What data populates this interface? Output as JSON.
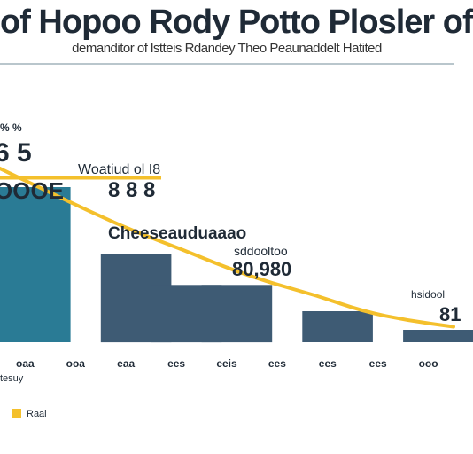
{
  "chart_data": {
    "type": "bar",
    "title": "of Hopoo Rody Potto Plosler of",
    "subtitle": "demanditor of lstteis Rdandey Theo Peaunaddelt Hatited",
    "categories": [
      "oaa",
      "ooa",
      "eaa",
      "ees",
      "eeis",
      "ees",
      "ees",
      "ees",
      "ooo"
    ],
    "values": [
      100,
      0,
      57,
      37,
      37,
      0,
      20,
      0,
      8
    ],
    "ylim": [
      0,
      100
    ],
    "colors": {
      "bar_primary": "#2a7b95",
      "bar_secondary": "#3e5b74",
      "curve": "#f4c02c",
      "target_line": "#f4c02c",
      "accent_text": "#2a8fb5"
    },
    "overlay_curve": [
      112,
      98,
      84,
      71,
      60,
      48,
      38,
      30,
      20,
      14,
      10
    ],
    "target_level": 106,
    "annotations": {
      "top_left_small": "% %",
      "top_left_big": "6 5",
      "top_left_value": "OOOE",
      "callout_label": "Woatiud ol I8",
      "callout_value": "8 8 8",
      "curve_label": "Cheeseauduaaao",
      "mid_label": "sddooltoo",
      "mid_value": "80,980",
      "right_label": "hsidool",
      "right_value": "81",
      "axis_note": "tesuy",
      "legend_label": "Raal"
    }
  }
}
